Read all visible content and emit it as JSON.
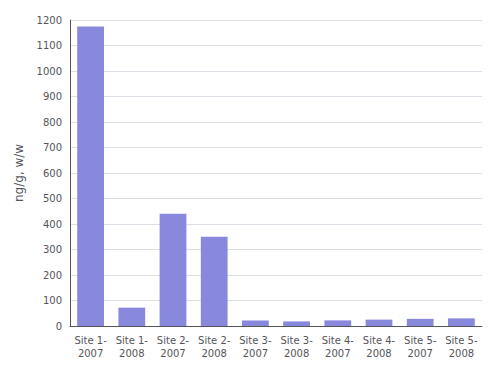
{
  "chart_data": {
    "type": "bar",
    "categories": [
      "Site 1-\n2007",
      "Site 1-\n2008",
      "Site 2-\n2007",
      "Site 2-\n2008",
      "Site 3-\n2007",
      "Site 3-\n2008",
      "Site 4-\n2007",
      "Site 4-\n2008",
      "Site 5-\n2007",
      "Site 5-\n2008"
    ],
    "values": [
      1175,
      72,
      440,
      350,
      22,
      18,
      22,
      25,
      28,
      30
    ],
    "color": "#8888dd",
    "ylabel": "ng/g, w/w",
    "ylim": [
      0,
      1200
    ],
    "yticks": [
      0,
      100,
      200,
      300,
      400,
      500,
      600,
      700,
      800,
      900,
      1000,
      1100,
      1200
    ],
    "grid": true
  }
}
